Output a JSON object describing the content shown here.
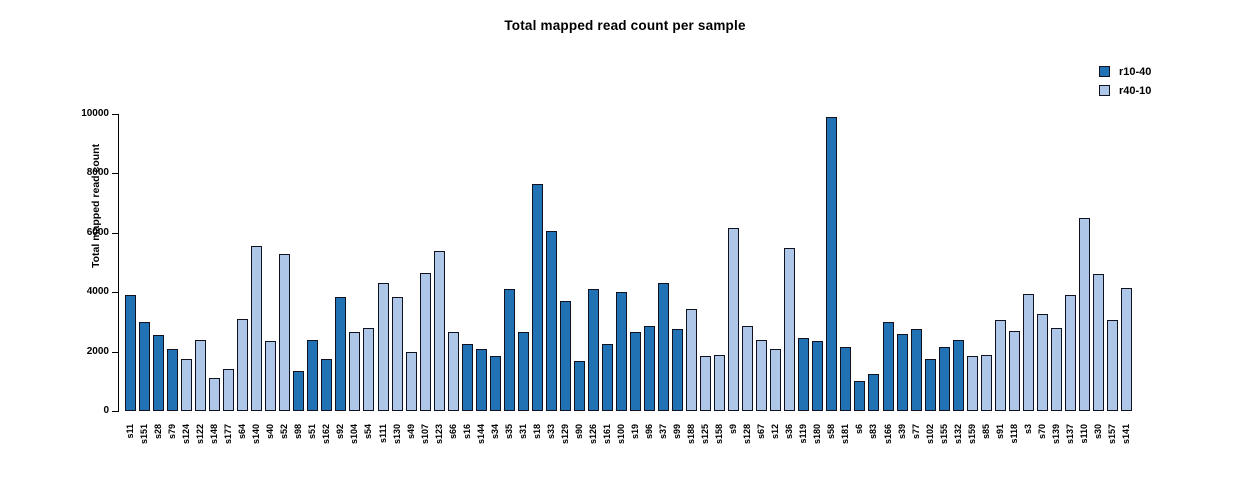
{
  "title": "Total mapped read count per sample",
  "legend": {
    "items": [
      {
        "label": "r10-40",
        "color": "#2171b5"
      },
      {
        "label": "r40-10",
        "color": "#aec7e8"
      }
    ]
  },
  "y_axis": {
    "label": "Total mapped read count",
    "tick_labels": [
      "0",
      "2000",
      "4000",
      "6000",
      "8000",
      "10000"
    ]
  },
  "chart_data": {
    "type": "bar",
    "title": "Total mapped read count per sample",
    "xlabel": "",
    "ylabel": "Total mapped read count",
    "ylim": [
      0,
      10000
    ],
    "yticks": [
      0,
      2000,
      4000,
      6000,
      8000,
      10000
    ],
    "grid": false,
    "legend_position": "top-right",
    "series": [
      {
        "name": "r10-40",
        "color": "#2171b5"
      },
      {
        "name": "r40-10",
        "color": "#aec7e8"
      }
    ],
    "bars": [
      {
        "label": "s11",
        "value": 3900,
        "group": "r10-40"
      },
      {
        "label": "s151",
        "value": 3000,
        "group": "r10-40"
      },
      {
        "label": "s28",
        "value": 2550,
        "group": "r10-40"
      },
      {
        "label": "s79",
        "value": 2100,
        "group": "r10-40"
      },
      {
        "label": "s124",
        "value": 1750,
        "group": "r40-10"
      },
      {
        "label": "s122",
        "value": 2400,
        "group": "r40-10"
      },
      {
        "label": "s148",
        "value": 1100,
        "group": "r40-10"
      },
      {
        "label": "s177",
        "value": 1400,
        "group": "r40-10"
      },
      {
        "label": "s64",
        "value": 3100,
        "group": "r40-10"
      },
      {
        "label": "s140",
        "value": 5550,
        "group": "r40-10"
      },
      {
        "label": "s40",
        "value": 2350,
        "group": "r40-10"
      },
      {
        "label": "s52",
        "value": 5300,
        "group": "r40-10"
      },
      {
        "label": "s98",
        "value": 1350,
        "group": "r10-40"
      },
      {
        "label": "s51",
        "value": 2400,
        "group": "r10-40"
      },
      {
        "label": "s162",
        "value": 1750,
        "group": "r10-40"
      },
      {
        "label": "s92",
        "value": 3850,
        "group": "r10-40"
      },
      {
        "label": "s104",
        "value": 2650,
        "group": "r40-10"
      },
      {
        "label": "s54",
        "value": 2800,
        "group": "r40-10"
      },
      {
        "label": "s111",
        "value": 4300,
        "group": "r40-10"
      },
      {
        "label": "s130",
        "value": 3850,
        "group": "r40-10"
      },
      {
        "label": "s49",
        "value": 2000,
        "group": "r40-10"
      },
      {
        "label": "s107",
        "value": 4650,
        "group": "r40-10"
      },
      {
        "label": "s123",
        "value": 5400,
        "group": "r40-10"
      },
      {
        "label": "s66",
        "value": 2650,
        "group": "r40-10"
      },
      {
        "label": "s16",
        "value": 2250,
        "group": "r10-40"
      },
      {
        "label": "s144",
        "value": 2100,
        "group": "r10-40"
      },
      {
        "label": "s34",
        "value": 1850,
        "group": "r10-40"
      },
      {
        "label": "s35",
        "value": 4100,
        "group": "r10-40"
      },
      {
        "label": "s31",
        "value": 2650,
        "group": "r10-40"
      },
      {
        "label": "s18",
        "value": 7650,
        "group": "r10-40"
      },
      {
        "label": "s33",
        "value": 6050,
        "group": "r10-40"
      },
      {
        "label": "s129",
        "value": 3700,
        "group": "r10-40"
      },
      {
        "label": "s90",
        "value": 1700,
        "group": "r10-40"
      },
      {
        "label": "s126",
        "value": 4100,
        "group": "r10-40"
      },
      {
        "label": "s161",
        "value": 2250,
        "group": "r10-40"
      },
      {
        "label": "s100",
        "value": 4000,
        "group": "r10-40"
      },
      {
        "label": "s19",
        "value": 2650,
        "group": "r10-40"
      },
      {
        "label": "s96",
        "value": 2850,
        "group": "r10-40"
      },
      {
        "label": "s37",
        "value": 4300,
        "group": "r10-40"
      },
      {
        "label": "s99",
        "value": 2750,
        "group": "r10-40"
      },
      {
        "label": "s188",
        "value": 3450,
        "group": "r40-10"
      },
      {
        "label": "s125",
        "value": 1850,
        "group": "r40-10"
      },
      {
        "label": "s158",
        "value": 1900,
        "group": "r40-10"
      },
      {
        "label": "s9",
        "value": 6150,
        "group": "r40-10"
      },
      {
        "label": "s128",
        "value": 2850,
        "group": "r40-10"
      },
      {
        "label": "s67",
        "value": 2400,
        "group": "r40-10"
      },
      {
        "label": "s12",
        "value": 2100,
        "group": "r40-10"
      },
      {
        "label": "s36",
        "value": 5500,
        "group": "r40-10"
      },
      {
        "label": "s119",
        "value": 2450,
        "group": "r10-40"
      },
      {
        "label": "s180",
        "value": 2350,
        "group": "r10-40"
      },
      {
        "label": "s58",
        "value": 9900,
        "group": "r10-40"
      },
      {
        "label": "s181",
        "value": 2150,
        "group": "r10-40"
      },
      {
        "label": "s6",
        "value": 1000,
        "group": "r10-40"
      },
      {
        "label": "s83",
        "value": 1250,
        "group": "r10-40"
      },
      {
        "label": "s166",
        "value": 3000,
        "group": "r10-40"
      },
      {
        "label": "s39",
        "value": 2600,
        "group": "r10-40"
      },
      {
        "label": "s77",
        "value": 2750,
        "group": "r10-40"
      },
      {
        "label": "s102",
        "value": 1750,
        "group": "r10-40"
      },
      {
        "label": "s155",
        "value": 2150,
        "group": "r10-40"
      },
      {
        "label": "s132",
        "value": 2400,
        "group": "r10-40"
      },
      {
        "label": "s159",
        "value": 1850,
        "group": "r40-10"
      },
      {
        "label": "s85",
        "value": 1900,
        "group": "r40-10"
      },
      {
        "label": "s91",
        "value": 3050,
        "group": "r40-10"
      },
      {
        "label": "s118",
        "value": 2700,
        "group": "r40-10"
      },
      {
        "label": "s3",
        "value": 3950,
        "group": "r40-10"
      },
      {
        "label": "s70",
        "value": 3250,
        "group": "r40-10"
      },
      {
        "label": "s139",
        "value": 2800,
        "group": "r40-10"
      },
      {
        "label": "s137",
        "value": 3900,
        "group": "r40-10"
      },
      {
        "label": "s110",
        "value": 6500,
        "group": "r40-10"
      },
      {
        "label": "s30",
        "value": 4600,
        "group": "r40-10"
      },
      {
        "label": "s157",
        "value": 3050,
        "group": "r40-10"
      },
      {
        "label": "s141",
        "value": 4150,
        "group": "r40-10"
      }
    ]
  }
}
